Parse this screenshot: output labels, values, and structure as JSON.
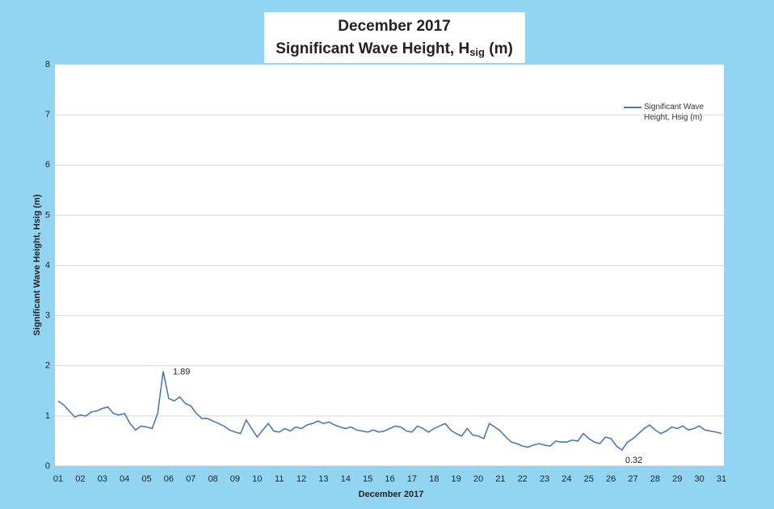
{
  "chart_data": {
    "type": "line",
    "title": "December 2017",
    "subtitle": [
      "Significant Wave Height, H",
      "sig",
      " (m)"
    ],
    "x_label": "December 2017",
    "y_label": "Significant Wave Height, Hsig (m)",
    "x": [
      1,
      1.25,
      1.5,
      1.75,
      2,
      2.25,
      2.5,
      2.75,
      3,
      3.25,
      3.5,
      3.75,
      4,
      4.25,
      4.5,
      4.75,
      5,
      5.25,
      5.5,
      5.75,
      6,
      6.25,
      6.5,
      6.75,
      7,
      7.25,
      7.5,
      7.75,
      8,
      8.25,
      8.5,
      8.75,
      9,
      9.25,
      9.5,
      9.75,
      10,
      10.25,
      10.5,
      10.75,
      11,
      11.25,
      11.5,
      11.75,
      12,
      12.25,
      12.5,
      12.75,
      13,
      13.25,
      13.5,
      13.75,
      14,
      14.25,
      14.5,
      14.75,
      15,
      15.25,
      15.5,
      15.75,
      16,
      16.25,
      16.5,
      16.75,
      17,
      17.25,
      17.5,
      17.75,
      18,
      18.25,
      18.5,
      18.75,
      19,
      19.25,
      19.5,
      19.75,
      20,
      20.25,
      20.5,
      20.75,
      21,
      21.25,
      21.5,
      21.75,
      22,
      22.25,
      22.5,
      22.75,
      23,
      23.25,
      23.5,
      23.75,
      24,
      24.25,
      24.5,
      24.75,
      25,
      25.25,
      25.5,
      25.75,
      26,
      26.25,
      26.5,
      26.75,
      27,
      27.25,
      27.5,
      27.75,
      28,
      28.25,
      28.5,
      28.75,
      29,
      29.25,
      29.5,
      29.75,
      30,
      30.25,
      30.5,
      30.75,
      31
    ],
    "series": [
      {
        "name": "Significant Wave Height, Hsig (m)",
        "color": "#4a7ab8",
        "values": [
          1.3,
          1.22,
          1.1,
          0.98,
          1.02,
          1.0,
          1.08,
          1.1,
          1.15,
          1.18,
          1.05,
          1.02,
          1.05,
          0.85,
          0.72,
          0.8,
          0.78,
          0.75,
          1.05,
          1.89,
          1.35,
          1.3,
          1.38,
          1.25,
          1.2,
          1.05,
          0.95,
          0.95,
          0.9,
          0.85,
          0.8,
          0.72,
          0.68,
          0.65,
          0.92,
          0.75,
          0.58,
          0.72,
          0.85,
          0.7,
          0.68,
          0.75,
          0.7,
          0.78,
          0.75,
          0.82,
          0.85,
          0.9,
          0.85,
          0.88,
          0.82,
          0.78,
          0.75,
          0.78,
          0.72,
          0.7,
          0.68,
          0.72,
          0.68,
          0.7,
          0.75,
          0.8,
          0.78,
          0.7,
          0.68,
          0.8,
          0.75,
          0.68,
          0.75,
          0.8,
          0.85,
          0.72,
          0.65,
          0.6,
          0.75,
          0.62,
          0.6,
          0.55,
          0.85,
          0.78,
          0.7,
          0.58,
          0.48,
          0.45,
          0.4,
          0.38,
          0.42,
          0.45,
          0.42,
          0.4,
          0.5,
          0.48,
          0.48,
          0.52,
          0.5,
          0.65,
          0.55,
          0.48,
          0.45,
          0.58,
          0.55,
          0.4,
          0.32,
          0.48,
          0.55,
          0.65,
          0.75,
          0.82,
          0.72,
          0.65,
          0.7,
          0.78,
          0.75,
          0.8,
          0.72,
          0.75,
          0.8,
          0.72,
          0.7,
          0.68,
          0.65
        ]
      }
    ],
    "annotations": [
      {
        "text": "1.89",
        "x": 5.75,
        "y": 1.89
      },
      {
        "text": "0.32",
        "x": 26.5,
        "y": 0.32
      }
    ],
    "xlim": [
      1,
      31
    ],
    "ylim": [
      0,
      8
    ],
    "xticks": [
      {
        "value": 1,
        "label": "01"
      },
      {
        "value": 2,
        "label": "02"
      },
      {
        "value": 3,
        "label": "03"
      },
      {
        "value": 4,
        "label": "04"
      },
      {
        "value": 5,
        "label": "05"
      },
      {
        "value": 6,
        "label": "06"
      },
      {
        "value": 7,
        "label": "07"
      },
      {
        "value": 8,
        "label": "08"
      },
      {
        "value": 9,
        "label": "09"
      },
      10,
      11,
      12,
      13,
      14,
      15,
      16,
      17,
      18,
      19,
      20,
      21,
      22,
      23,
      24,
      25,
      26,
      27,
      28,
      29,
      30,
      31
    ],
    "yticks": [
      0,
      1,
      2,
      3,
      4,
      5,
      6,
      7,
      8
    ],
    "grid": true,
    "legend": "top-right"
  }
}
